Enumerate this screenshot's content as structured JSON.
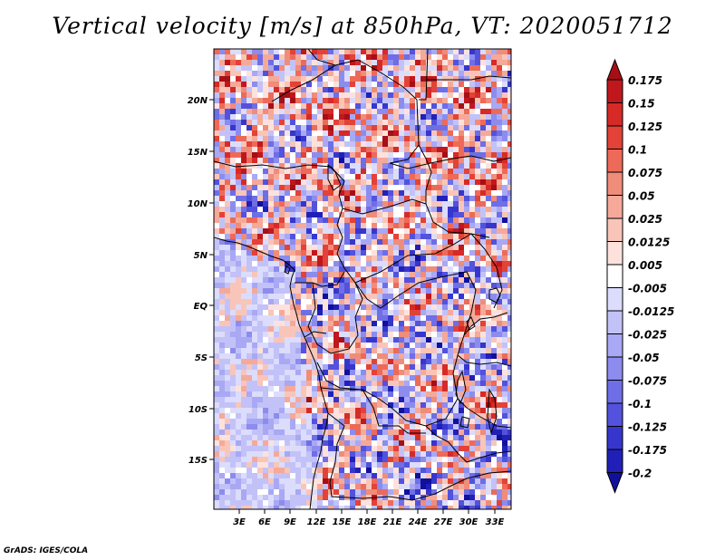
{
  "title": "Vertical velocity [m/s] at 850hPa, VT: 2020051712",
  "credit": "GrADS: IGES/COLA",
  "lat_labels": [
    "20N",
    "15N",
    "10N",
    "5N",
    "EQ",
    "5S",
    "10S",
    "15S"
  ],
  "lon_labels": [
    "3E",
    "6E",
    "9E",
    "12E",
    "15E",
    "18E",
    "21E",
    "24E",
    "27E",
    "30E",
    "33E"
  ],
  "colorbar": {
    "labels": [
      "0.175",
      "0.15",
      "0.125",
      "0.1",
      "0.075",
      "0.05",
      "0.025",
      "0.0125",
      "0.005",
      "-0.005",
      "-0.0125",
      "-0.025",
      "-0.05",
      "-0.075",
      "-0.1",
      "-0.125",
      "-0.175",
      "-0.2"
    ],
    "colors": [
      "#a50f15",
      "#c0171d",
      "#d62a27",
      "#e24237",
      "#ee6a58",
      "#f08c7a",
      "#f5a999",
      "#f9c5b9",
      "#fde2dc",
      "#ffffff",
      "#dcdcfc",
      "#c2c2f8",
      "#a8a8f4",
      "#8c8cee",
      "#6e6ee6",
      "#5252dc",
      "#3636cc",
      "#2020b8",
      "#10109c"
    ]
  }
}
